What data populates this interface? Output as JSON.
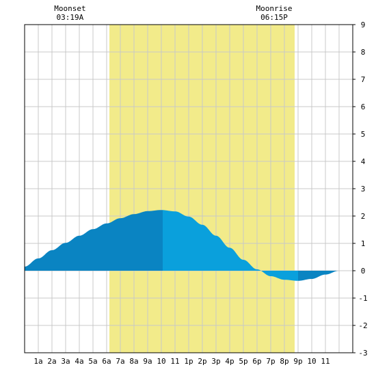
{
  "chart_data": {
    "type": "area",
    "title": "",
    "xlabel": "",
    "ylabel": "",
    "x_range": [
      0,
      24
    ],
    "ylim": [
      -3,
      9
    ],
    "y_ticks": [
      -3,
      -2,
      -1,
      0,
      1,
      2,
      3,
      4,
      5,
      6,
      7,
      8,
      9
    ],
    "x_ticks": [
      {
        "x": 1,
        "label": "1a"
      },
      {
        "x": 2,
        "label": "2a"
      },
      {
        "x": 3,
        "label": "3a"
      },
      {
        "x": 4,
        "label": "4a"
      },
      {
        "x": 5,
        "label": "5a"
      },
      {
        "x": 6,
        "label": "6a"
      },
      {
        "x": 7,
        "label": "7a"
      },
      {
        "x": 8,
        "label": "8a"
      },
      {
        "x": 9,
        "label": "9a"
      },
      {
        "x": 10,
        "label": "10"
      },
      {
        "x": 11,
        "label": "11"
      },
      {
        "x": 12,
        "label": "1p"
      },
      {
        "x": 13,
        "label": "2p"
      },
      {
        "x": 14,
        "label": "3p"
      },
      {
        "x": 15,
        "label": "4p"
      },
      {
        "x": 16,
        "label": "5p"
      },
      {
        "x": 17,
        "label": "6p"
      },
      {
        "x": 18,
        "label": "7p"
      },
      {
        "x": 19,
        "label": "8p"
      },
      {
        "x": 20,
        "label": "9p"
      },
      {
        "x": 21,
        "label": "10"
      },
      {
        "x": 22,
        "label": "11"
      }
    ],
    "grid": true,
    "daylight": {
      "start": 6.2,
      "end": 19.75
    },
    "events": [
      {
        "label": "Moonset",
        "time": "03:19A",
        "x": 3.32
      },
      {
        "label": "Moonrise",
        "time": "06:15P",
        "x": 18.25
      }
    ],
    "series": [
      {
        "points": [
          [
            0,
            0.15
          ],
          [
            1,
            0.45
          ],
          [
            2,
            0.75
          ],
          [
            3,
            1.02
          ],
          [
            4,
            1.28
          ],
          [
            5,
            1.52
          ],
          [
            6,
            1.73
          ],
          [
            7,
            1.92
          ],
          [
            8,
            2.07
          ],
          [
            9,
            2.18
          ],
          [
            10,
            2.22
          ],
          [
            11,
            2.17
          ],
          [
            12,
            1.98
          ],
          [
            13,
            1.68
          ],
          [
            14,
            1.28
          ],
          [
            15,
            0.84
          ],
          [
            16,
            0.4
          ],
          [
            17,
            0.05
          ],
          [
            18,
            -0.2
          ],
          [
            19,
            -0.33
          ],
          [
            20,
            -0.37
          ],
          [
            21,
            -0.3
          ],
          [
            22,
            -0.14
          ],
          [
            23,
            0.0
          ],
          [
            24,
            0.0
          ]
        ]
      }
    ],
    "high_tide_x": 10.1,
    "low_tide_x": 20.0,
    "colors": {
      "daylight": "#f2eb8a",
      "grid": "#c8c8c8",
      "water_dark": "#0a84c2",
      "water_light": "#0aa0dc",
      "axis": "#000000"
    }
  }
}
